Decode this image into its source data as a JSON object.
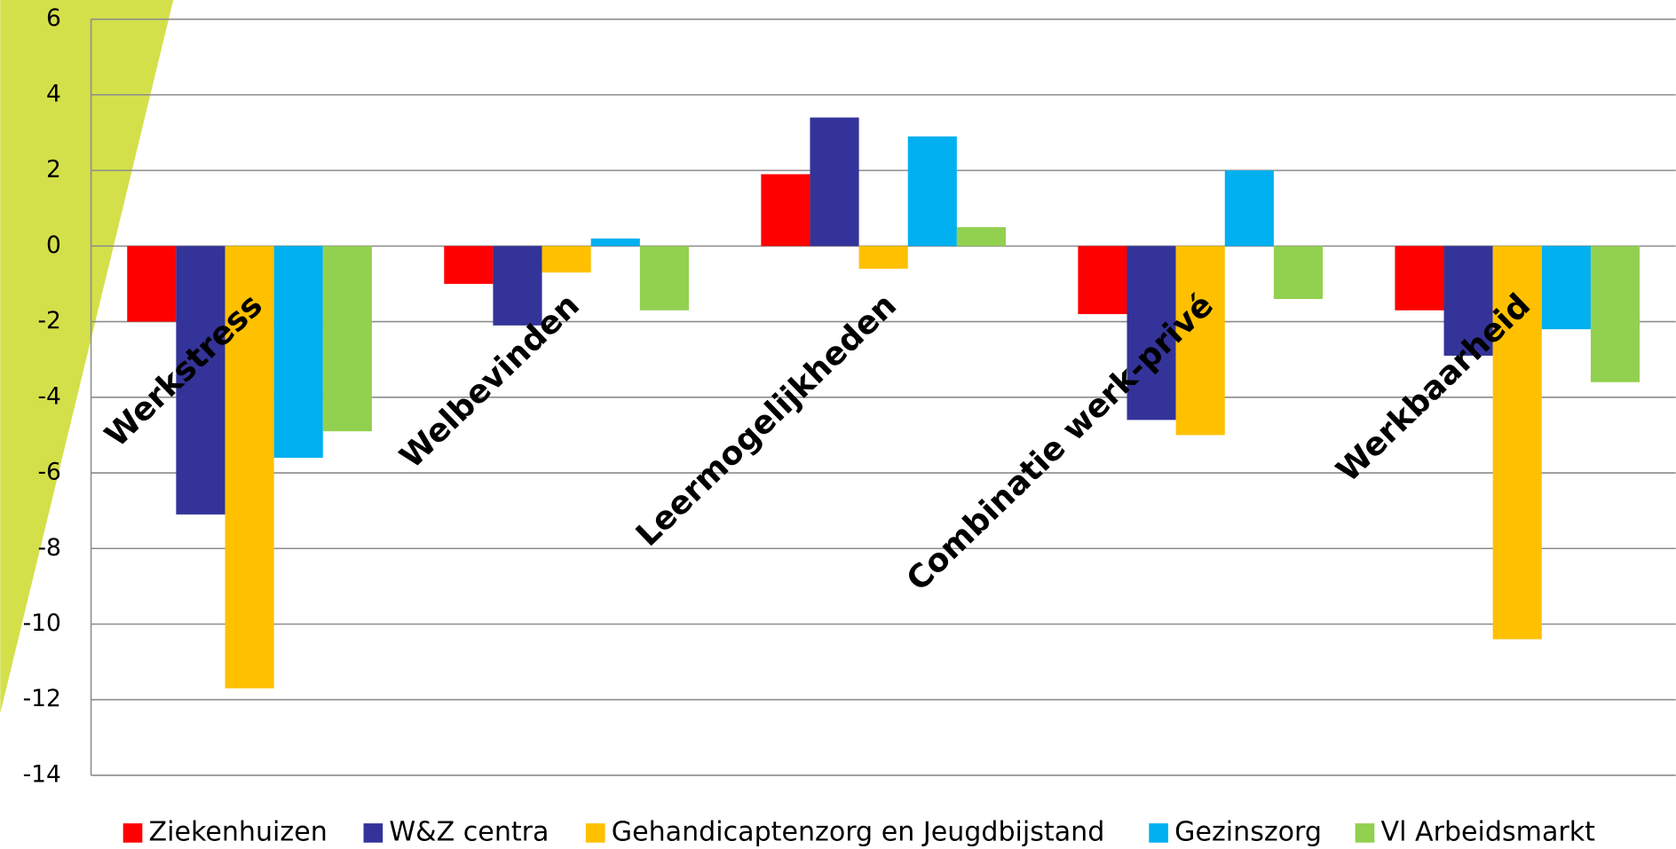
{
  "chart_data": {
    "type": "bar",
    "categories": [
      "Werkstress",
      "Welbevinden",
      "Leermogelijkheden",
      "Combinatie werk-privé",
      "Werkbaarheid"
    ],
    "series": [
      {
        "name": "Ziekenhuizen",
        "color": "#ff0000",
        "values": [
          -2.0,
          -1.0,
          1.9,
          -1.8,
          -1.7
        ]
      },
      {
        "name": "W&Z centra",
        "color": "#333399",
        "values": [
          -7.1,
          -2.1,
          3.4,
          -4.6,
          -2.9
        ]
      },
      {
        "name": "Gehandicaptenzorg en Jeugdbijstand",
        "color": "#ffc000",
        "values": [
          -11.7,
          -0.7,
          -0.6,
          -5.0,
          -10.4
        ]
      },
      {
        "name": "Gezinszorg",
        "color": "#00b0f0",
        "values": [
          -5.6,
          0.2,
          2.9,
          2.0,
          -2.2
        ]
      },
      {
        "name": "Vl Arbeidsmarkt",
        "color": "#92d050",
        "values": [
          -4.9,
          -1.7,
          0.5,
          -1.4,
          -3.6
        ]
      }
    ],
    "ylim": [
      -14,
      6
    ],
    "yticks": [
      6,
      4,
      2,
      0,
      -2,
      -4,
      -6,
      -8,
      -10,
      -12,
      -14
    ],
    "grid": true,
    "legend": "bottom"
  }
}
